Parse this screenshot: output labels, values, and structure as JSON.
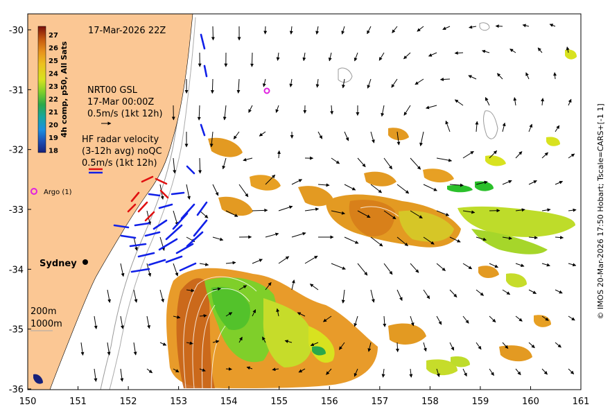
{
  "title": "17-Mar-2026 22Z",
  "colorbar": {
    "title": "4h comp, p50, All Sats",
    "ticks": [
      "27",
      "26",
      "25",
      "24",
      "23",
      "22",
      "21",
      "20",
      "19",
      "18"
    ],
    "colors": [
      "#7a0f0a",
      "#c4580f",
      "#e7921c",
      "#edc11f",
      "#d8e21f",
      "#7fcf2a",
      "#2aa84a",
      "#16a6a0",
      "#1a8fe0",
      "#1c4fb5",
      "#17217a"
    ]
  },
  "legend": {
    "nrt_line1": "NRT00 GSL",
    "nrt_line2": "17-Mar 00:00Z",
    "nrt_line3": "0.5m/s (1kt 12h)",
    "hf_line1": "HF radar velocity",
    "hf_line2": "(3-12h avg) noQC",
    "hf_line3": "0.5m/s (1kt 12h)",
    "argo": "Argo (1)",
    "depth1": "200m",
    "depth2": "1000m"
  },
  "city": "Sydney",
  "side_credit": "© IMOS 20-Mar-2026 17:50 Hobart; Tscale=CARS+[-1 1]",
  "axes": {
    "x_ticks": [
      "150",
      "151",
      "152",
      "153",
      "154",
      "155",
      "156",
      "157",
      "158",
      "159",
      "160",
      "161"
    ],
    "y_ticks": [
      "-30",
      "-31",
      "-32",
      "-33",
      "-34",
      "-35",
      "-36"
    ],
    "lon_range": [
      150,
      161
    ],
    "lat_range": [
      -36,
      -30
    ]
  },
  "colors": {
    "land": "#fbc794",
    "argo": "#e020e0",
    "hf_blue": "#1020e8",
    "hf_red": "#e01010"
  }
}
